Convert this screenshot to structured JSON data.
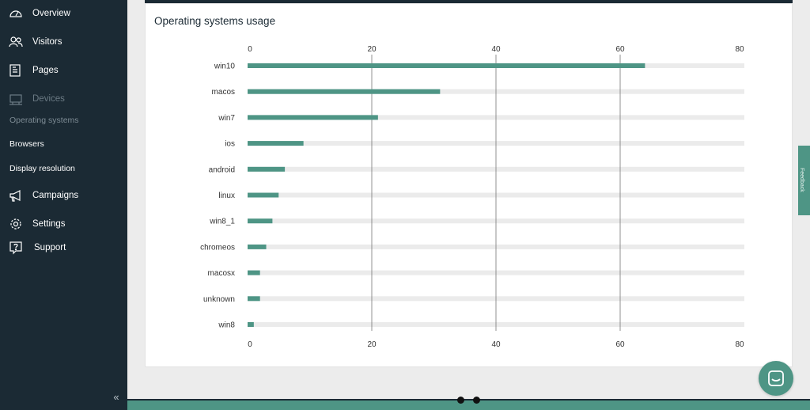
{
  "sidebar": {
    "items": [
      {
        "label": "Overview",
        "icon": "gauge-icon"
      },
      {
        "label": "Visitors",
        "icon": "users-icon"
      },
      {
        "label": "Pages",
        "icon": "pages-icon"
      },
      {
        "label": "Devices",
        "icon": "devices-icon"
      },
      {
        "label": "Campaigns",
        "icon": "megaphone-icon"
      },
      {
        "label": "Settings",
        "icon": "gear-icon"
      },
      {
        "label": "Support",
        "icon": "help-icon"
      }
    ],
    "sub_items": [
      {
        "label": "Operating systems"
      },
      {
        "label": "Browsers"
      },
      {
        "label": "Display resolution"
      }
    ],
    "collapse_glyph": "«"
  },
  "card": {
    "title": "Operating systems usage"
  },
  "feedback_tab": {
    "label": "Feedback"
  },
  "chart_data": {
    "type": "bar",
    "orientation": "horizontal",
    "title": "Operating systems usage",
    "categories": [
      "win10",
      "macos",
      "win7",
      "ios",
      "android",
      "linux",
      "win8_1",
      "chromeos",
      "macosx",
      "unknown",
      "win8"
    ],
    "values": [
      64,
      31,
      21,
      9,
      6,
      5,
      4,
      3,
      2,
      2,
      1
    ],
    "xlim": [
      0,
      80
    ],
    "xticks": [
      "0",
      "20",
      "40",
      "60",
      "80"
    ],
    "grid": true,
    "bar_color": "#4e9585",
    "track_color": "#ebebeb"
  },
  "colors": {
    "sidebar_bg": "#1b2a34",
    "accent": "#4e9585"
  }
}
